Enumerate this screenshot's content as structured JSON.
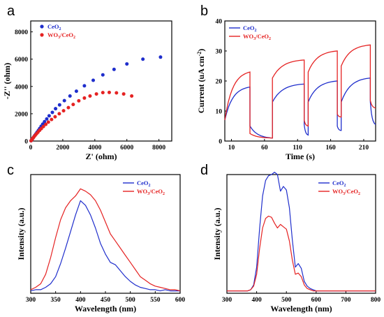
{
  "colors": {
    "ceo2": "#1f2ecc",
    "wo3_ceo2": "#e52222"
  },
  "chart_data": [
    {
      "panel": "a",
      "type": "scatter",
      "xlabel": "Z' (ohm)",
      "ylabel": "-Z'' (ohm)",
      "xlim": [
        0,
        8800
      ],
      "ylim": [
        0,
        8800
      ],
      "xticks": [
        0,
        2000,
        4000,
        6000,
        8000
      ],
      "yticks": [
        0,
        2000,
        4000,
        6000,
        8000
      ],
      "legend": "top-left",
      "series": [
        {
          "name": "CeO",
          "sub": "2",
          "x": [
            20,
            60,
            100,
            150,
            200,
            260,
            330,
            400,
            480,
            560,
            650,
            750,
            860,
            1000,
            1150,
            1350,
            1550,
            1800,
            2100,
            2450,
            2850,
            3350,
            3900,
            4500,
            5200,
            6000,
            7000,
            8100
          ],
          "y": [
            20,
            80,
            150,
            230,
            320,
            420,
            530,
            650,
            780,
            920,
            1080,
            1240,
            1420,
            1620,
            1850,
            2100,
            2370,
            2650,
            2960,
            3300,
            3650,
            4050,
            4450,
            4850,
            5250,
            5650,
            6000,
            6150
          ]
        },
        {
          "name": "WO",
          "sub": "3",
          "name2": "/CeO",
          "sub2": "2",
          "x": [
            20,
            60,
            100,
            150,
            210,
            280,
            360,
            450,
            550,
            660,
            790,
            940,
            1100,
            1300,
            1520,
            1780,
            2050,
            2350,
            2650,
            3000,
            3350,
            3700,
            4100,
            4500,
            4900,
            5350,
            5800,
            6300
          ],
          "y": [
            20,
            80,
            150,
            230,
            320,
            420,
            530,
            650,
            780,
            910,
            1060,
            1220,
            1390,
            1580,
            1780,
            2000,
            2220,
            2450,
            2680,
            2950,
            3150,
            3300,
            3450,
            3550,
            3560,
            3530,
            3450,
            3300
          ]
        }
      ]
    },
    {
      "panel": "b",
      "type": "line",
      "xlabel": "Time (s)",
      "ylabel": "Current (uA cm",
      "ylabel_sup": "-2",
      "ylabel_end": ")",
      "xlim": [
        0,
        228
      ],
      "ylim": [
        0,
        40
      ],
      "xticks": [
        10,
        60,
        110,
        160,
        210
      ],
      "yticks": [
        0,
        10,
        20,
        30,
        40
      ],
      "legend": "top-left",
      "cycles": [
        {
          "on": 0,
          "off": 38,
          "next": 72
        },
        {
          "on": 72,
          "off": 120,
          "next": 126
        },
        {
          "on": 126,
          "off": 170,
          "next": 176
        },
        {
          "on": 176,
          "off": 220,
          "next": 228
        }
      ],
      "series": [
        {
          "name": "CeO",
          "sub": "2",
          "on_start": [
            7,
            13,
            13,
            13
          ],
          "on_peak": [
            18,
            19,
            20,
            21
          ],
          "off_start": [
            5,
            5.5,
            5,
            13
          ],
          "off_end": [
            1,
            2,
            3.5,
            5.5
          ]
        },
        {
          "name": "WO",
          "sub": "3",
          "name2": "/CeO",
          "sub2": "2",
          "on_start": [
            7,
            21,
            23,
            25
          ],
          "on_peak": [
            23,
            27,
            30,
            32
          ],
          "off_start": [
            2.5,
            7,
            9,
            13.5
          ],
          "off_end": [
            1,
            5,
            8,
            11
          ]
        }
      ]
    },
    {
      "panel": "c",
      "type": "line",
      "xlabel": "Wavelength (nm)",
      "ylabel": "Intensity (a.u.)",
      "xlim": [
        300,
        600
      ],
      "ylim": [
        0,
        1
      ],
      "xticks": [
        300,
        350,
        400,
        450,
        500,
        550,
        600
      ],
      "legend": "top-right",
      "series": [
        {
          "name": "CeO",
          "sub": "2",
          "x": [
            300,
            310,
            320,
            330,
            340,
            350,
            360,
            370,
            380,
            390,
            400,
            410,
            420,
            430,
            440,
            450,
            460,
            470,
            480,
            490,
            500,
            510,
            520,
            530,
            540,
            550,
            560,
            570,
            580,
            590,
            600
          ],
          "y": [
            0.02,
            0.03,
            0.03,
            0.05,
            0.08,
            0.14,
            0.25,
            0.38,
            0.52,
            0.66,
            0.78,
            0.74,
            0.66,
            0.55,
            0.42,
            0.33,
            0.26,
            0.24,
            0.19,
            0.14,
            0.1,
            0.07,
            0.05,
            0.04,
            0.03,
            0.03,
            0.02,
            0.03,
            0.02,
            0.02,
            0.02
          ]
        },
        {
          "name": "WO",
          "sub": "3",
          "name2": "/CeO",
          "sub2": "2",
          "x": [
            300,
            310,
            320,
            330,
            340,
            350,
            360,
            370,
            380,
            390,
            400,
            410,
            420,
            430,
            440,
            450,
            460,
            470,
            480,
            490,
            500,
            510,
            520,
            530,
            540,
            550,
            560,
            570,
            580,
            590,
            600
          ],
          "y": [
            0.03,
            0.05,
            0.08,
            0.16,
            0.3,
            0.47,
            0.62,
            0.72,
            0.78,
            0.82,
            0.88,
            0.86,
            0.83,
            0.78,
            0.7,
            0.6,
            0.5,
            0.44,
            0.38,
            0.32,
            0.26,
            0.2,
            0.14,
            0.11,
            0.08,
            0.06,
            0.05,
            0.04,
            0.03,
            0.03,
            0.02
          ]
        }
      ]
    },
    {
      "panel": "d",
      "type": "line",
      "xlabel": "Wavelength (nm)",
      "ylabel": "Intensity (a.u.)",
      "xlim": [
        300,
        800
      ],
      "ylim": [
        0,
        1
      ],
      "xticks": [
        300,
        400,
        500,
        600,
        700,
        800
      ],
      "legend": "top-right",
      "series": [
        {
          "name": "CeO",
          "sub": "2",
          "x": [
            300,
            340,
            370,
            380,
            390,
            400,
            410,
            420,
            430,
            440,
            450,
            460,
            470,
            480,
            490,
            500,
            510,
            520,
            530,
            540,
            550,
            560,
            570,
            580,
            590,
            600,
            620,
            650,
            700,
            750,
            800
          ],
          "y": [
            0.02,
            0.02,
            0.02,
            0.03,
            0.07,
            0.22,
            0.55,
            0.82,
            0.95,
            0.99,
            1.0,
            1.02,
            1.0,
            0.86,
            0.9,
            0.87,
            0.72,
            0.45,
            0.22,
            0.25,
            0.21,
            0.1,
            0.06,
            0.04,
            0.03,
            0.02,
            0.02,
            0.02,
            0.02,
            0.02,
            0.02
          ]
        },
        {
          "name": "WO",
          "sub": "3",
          "name2": "/CeO",
          "sub2": "2",
          "x": [
            300,
            340,
            370,
            380,
            390,
            400,
            410,
            420,
            430,
            440,
            450,
            460,
            470,
            480,
            490,
            500,
            510,
            520,
            530,
            540,
            550,
            560,
            570,
            580,
            590,
            600,
            620,
            650,
            700,
            750,
            800
          ],
          "y": [
            0.02,
            0.02,
            0.02,
            0.03,
            0.06,
            0.16,
            0.38,
            0.55,
            0.63,
            0.65,
            0.64,
            0.59,
            0.55,
            0.58,
            0.56,
            0.54,
            0.44,
            0.28,
            0.16,
            0.17,
            0.14,
            0.07,
            0.04,
            0.03,
            0.02,
            0.02,
            0.02,
            0.02,
            0.02,
            0.02,
            0.02
          ]
        }
      ]
    }
  ]
}
